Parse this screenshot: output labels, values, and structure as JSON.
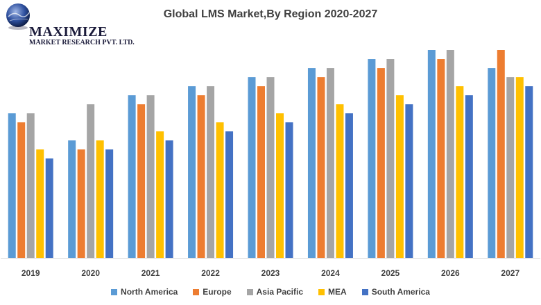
{
  "logo": {
    "name": "MAXIMIZE",
    "subtitle": "MARKET RESEARCH PVT. LTD."
  },
  "chart_data": {
    "type": "bar",
    "title": "Global LMS Market,By Region 2020-2027",
    "xlabel": "",
    "ylabel": "",
    "ylim": [
      0,
      23
    ],
    "grid": false,
    "legend": "bottom",
    "categories": [
      "2019",
      "2020",
      "2021",
      "2022",
      "2023",
      "2024",
      "2025",
      "2026",
      "2027"
    ],
    "series": [
      {
        "name": "North America",
        "color": "#5B9BD5",
        "values": [
          16,
          13,
          18,
          19,
          20,
          21,
          22,
          23,
          21
        ]
      },
      {
        "name": "Europe",
        "color": "#ED7D31",
        "values": [
          15,
          12,
          17,
          18,
          19,
          20,
          21,
          22,
          23
        ]
      },
      {
        "name": "Asia Pacific",
        "color": "#A5A5A5",
        "values": [
          16,
          17,
          18,
          19,
          20,
          21,
          22,
          23,
          20
        ]
      },
      {
        "name": "MEA",
        "color": "#FFC000",
        "values": [
          12,
          13,
          14,
          15,
          16,
          17,
          18,
          19,
          20
        ]
      },
      {
        "name": "South America",
        "color": "#4472C4",
        "values": [
          11,
          12,
          13,
          14,
          15,
          16,
          17,
          18,
          19
        ]
      }
    ]
  }
}
